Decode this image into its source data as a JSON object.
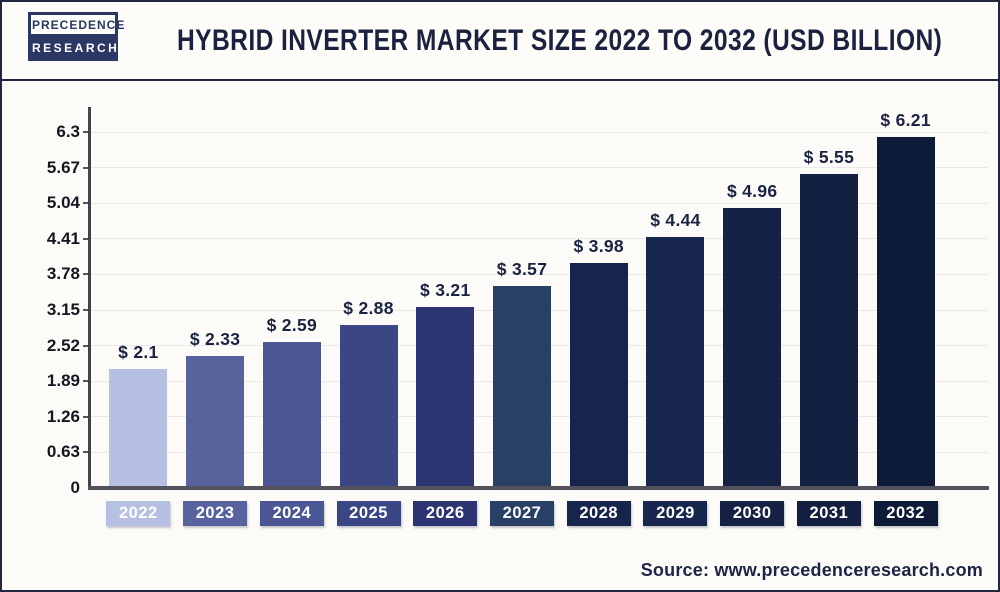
{
  "header": {
    "logo_line1": "PRECEDENCE",
    "logo_line2": "RESEARCH",
    "title": "HYBRID INVERTER MARKET SIZE 2022 TO 2032 (USD BILLION)"
  },
  "chart_data": {
    "type": "bar",
    "title": "Hybrid Inverter Market Size 2022 to 2032 (USD Billion)",
    "categories": [
      "2022",
      "2023",
      "2024",
      "2025",
      "2026",
      "2027",
      "2028",
      "2029",
      "2030",
      "2031",
      "2032"
    ],
    "values": [
      2.1,
      2.33,
      2.59,
      2.88,
      3.21,
      3.57,
      3.98,
      4.44,
      4.96,
      5.55,
      6.21
    ],
    "value_labels": [
      "$ 2.1",
      "$ 2.33",
      "$ 2.59",
      "$ 2.88",
      "$ 3.21",
      "$ 3.57",
      "$ 3.98",
      "$ 4.44",
      "$ 4.96",
      "$ 5.55",
      "$ 6.21"
    ],
    "bar_colors": [
      "#b5c0e2",
      "#56639c",
      "#4b5794",
      "#3b4684",
      "#2c3572",
      "#284065",
      "#16254b",
      "#18274e",
      "#152245",
      "#121f40",
      "#0e1b38"
    ],
    "ytick_labels": [
      "0",
      "0.63",
      "1.26",
      "1.89",
      "2.52",
      "3.15",
      "3.78",
      "4.41",
      "5.04",
      "5.67",
      "6.3"
    ],
    "yticks": [
      0,
      0.63,
      1.26,
      1.89,
      2.52,
      3.15,
      3.78,
      4.41,
      5.04,
      5.67,
      6.3
    ],
    "ylim": [
      0,
      6.3
    ],
    "grid": "horizontal",
    "legend": "none",
    "xlabel": "",
    "ylabel": ""
  },
  "footer": {
    "source": "Source: www.precedenceresearch.com"
  },
  "colors": {
    "frame_border": "#23263f",
    "title_text": "#1b2240",
    "value_label_text": "#1b2342",
    "axis_line": "#43434e",
    "baseline": "#53525c",
    "gridline": "#e9e9ec",
    "background": "#fcfbf7",
    "logo_navy": "#2b3765",
    "source_text": "#1b2545"
  }
}
